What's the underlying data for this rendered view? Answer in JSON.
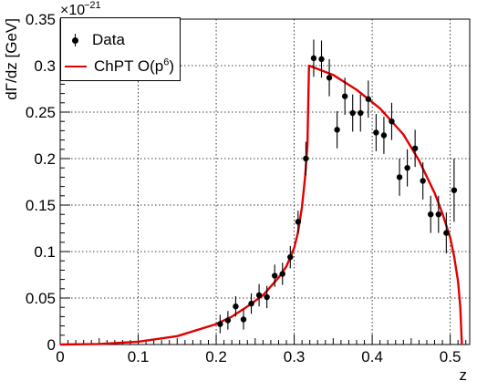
{
  "chart_data": {
    "type": "scatter",
    "title": "",
    "xlabel": "z",
    "ylabel": "dΓ/dz [GeV]",
    "y_exponent_label": "×10",
    "y_exponent_power": "−21",
    "xlim": [
      0,
      0.525
    ],
    "ylim": [
      0,
      0.35
    ],
    "x_ticks": [
      0,
      0.1,
      0.2,
      0.3,
      0.4,
      0.5
    ],
    "x_tick_labels": [
      "0",
      "0.1",
      "0.2",
      "0.3",
      "0.4",
      "0.5"
    ],
    "y_ticks": [
      0,
      0.05,
      0.1,
      0.15,
      0.2,
      0.25,
      0.3,
      0.35
    ],
    "y_tick_labels": [
      "0",
      "0.05",
      "0.1",
      "0.15",
      "0.2",
      "0.25",
      "0.3",
      "0.35"
    ],
    "grid": true,
    "legend_position": "top-left",
    "series": [
      {
        "name": "Data",
        "kind": "points_with_errors",
        "color": "#000000",
        "points": [
          {
            "x": 0.205,
            "y": 0.022,
            "err": 0.01
          },
          {
            "x": 0.215,
            "y": 0.026,
            "err": 0.01
          },
          {
            "x": 0.225,
            "y": 0.041,
            "err": 0.011
          },
          {
            "x": 0.235,
            "y": 0.027,
            "err": 0.011
          },
          {
            "x": 0.245,
            "y": 0.044,
            "err": 0.011
          },
          {
            "x": 0.255,
            "y": 0.053,
            "err": 0.012
          },
          {
            "x": 0.265,
            "y": 0.051,
            "err": 0.012
          },
          {
            "x": 0.275,
            "y": 0.074,
            "err": 0.012
          },
          {
            "x": 0.285,
            "y": 0.076,
            "err": 0.012
          },
          {
            "x": 0.295,
            "y": 0.094,
            "err": 0.012
          },
          {
            "x": 0.305,
            "y": 0.132,
            "err": 0.012
          },
          {
            "x": 0.315,
            "y": 0.2,
            "err": 0.018
          },
          {
            "x": 0.325,
            "y": 0.308,
            "err": 0.02
          },
          {
            "x": 0.335,
            "y": 0.307,
            "err": 0.02
          },
          {
            "x": 0.345,
            "y": 0.287,
            "err": 0.02
          },
          {
            "x": 0.355,
            "y": 0.231,
            "err": 0.02
          },
          {
            "x": 0.365,
            "y": 0.267,
            "err": 0.02
          },
          {
            "x": 0.375,
            "y": 0.249,
            "err": 0.02
          },
          {
            "x": 0.385,
            "y": 0.249,
            "err": 0.02
          },
          {
            "x": 0.395,
            "y": 0.264,
            "err": 0.02
          },
          {
            "x": 0.405,
            "y": 0.228,
            "err": 0.02
          },
          {
            "x": 0.415,
            "y": 0.225,
            "err": 0.02
          },
          {
            "x": 0.425,
            "y": 0.24,
            "err": 0.02
          },
          {
            "x": 0.435,
            "y": 0.18,
            "err": 0.02
          },
          {
            "x": 0.445,
            "y": 0.19,
            "err": 0.02
          },
          {
            "x": 0.455,
            "y": 0.211,
            "err": 0.02
          },
          {
            "x": 0.465,
            "y": 0.176,
            "err": 0.02
          },
          {
            "x": 0.475,
            "y": 0.14,
            "err": 0.02
          },
          {
            "x": 0.485,
            "y": 0.14,
            "err": 0.02
          },
          {
            "x": 0.495,
            "y": 0.12,
            "err": 0.022
          },
          {
            "x": 0.505,
            "y": 0.166,
            "err": 0.034
          }
        ]
      },
      {
        "name": "ChPT O(p",
        "name_superscript": "6",
        "name_suffix": ")",
        "kind": "line",
        "color": "#e00000",
        "points": [
          {
            "x": 0.0,
            "y": 0.0
          },
          {
            "x": 0.05,
            "y": 0.0006
          },
          {
            "x": 0.1,
            "y": 0.003
          },
          {
            "x": 0.15,
            "y": 0.009
          },
          {
            "x": 0.2,
            "y": 0.022
          },
          {
            "x": 0.22,
            "y": 0.03
          },
          {
            "x": 0.24,
            "y": 0.041
          },
          {
            "x": 0.26,
            "y": 0.053
          },
          {
            "x": 0.28,
            "y": 0.072
          },
          {
            "x": 0.29,
            "y": 0.084
          },
          {
            "x": 0.3,
            "y": 0.104
          },
          {
            "x": 0.305,
            "y": 0.121
          },
          {
            "x": 0.31,
            "y": 0.148
          },
          {
            "x": 0.314,
            "y": 0.18
          },
          {
            "x": 0.317,
            "y": 0.215
          },
          {
            "x": 0.319,
            "y": 0.3
          },
          {
            "x": 0.35,
            "y": 0.29
          },
          {
            "x": 0.38,
            "y": 0.274
          },
          {
            "x": 0.41,
            "y": 0.254
          },
          {
            "x": 0.44,
            "y": 0.226
          },
          {
            "x": 0.46,
            "y": 0.198
          },
          {
            "x": 0.48,
            "y": 0.163
          },
          {
            "x": 0.49,
            "y": 0.141
          },
          {
            "x": 0.5,
            "y": 0.115
          },
          {
            "x": 0.505,
            "y": 0.095
          },
          {
            "x": 0.51,
            "y": 0.068
          },
          {
            "x": 0.513,
            "y": 0.04
          },
          {
            "x": 0.515,
            "y": 0.0
          }
        ]
      }
    ]
  }
}
